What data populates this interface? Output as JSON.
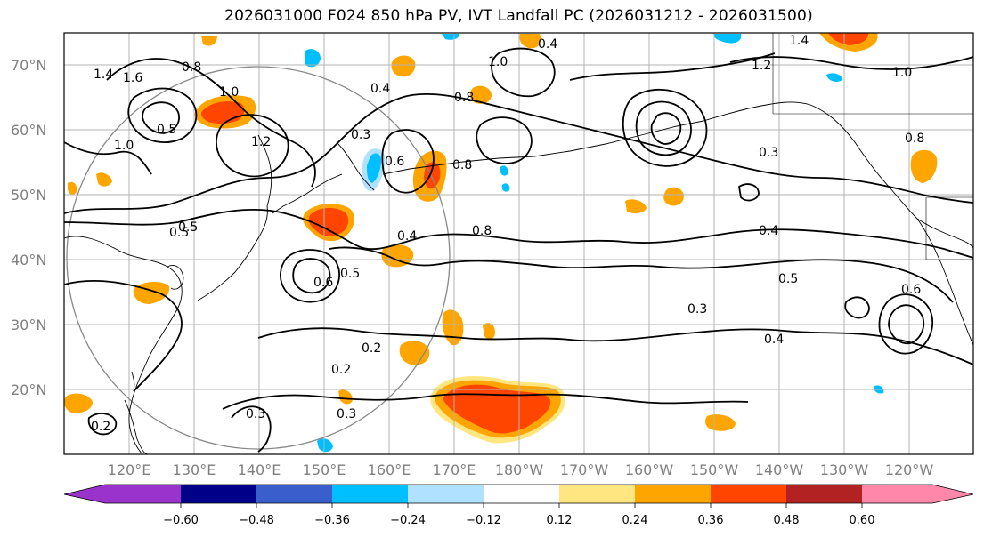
{
  "title": "2026031000 F024 850 hPa PV, IVT Landfall PC (2026031212 - 2026031500)",
  "lat_labels": [
    "70°N",
    "60°N",
    "50°N",
    "40°N",
    "30°N",
    "20°N"
  ],
  "lon_labels": [
    "120°E",
    "130°E",
    "140°E",
    "150°E",
    "160°E",
    "170°E",
    "180°W",
    "170°W",
    "160°W",
    "150°W",
    "140°W",
    "130°W",
    "120°W"
  ],
  "contour_labels": [
    "1.4",
    "1.6",
    "0.8",
    "1.0",
    "0.5",
    "1.0",
    "1.2",
    "0.4",
    "1.0",
    "0.8",
    "0.3",
    "0.8",
    "0.4",
    "0.6",
    "0.4",
    "0.5",
    "0.4",
    "0.3",
    "0.3",
    "0.4",
    "0.2",
    "0.2",
    "0.3",
    "0.2",
    "0.5",
    "0.8",
    "0.5",
    "0.6",
    "0.6",
    "1.2",
    "1.0",
    "1.4",
    "0.8",
    "0.5",
    "0.3"
  ],
  "colorbar": {
    "ticks": [
      "−0.60",
      "−0.48",
      "−0.36",
      "−0.24",
      "−0.12",
      "0.12",
      "0.24",
      "0.36",
      "0.48",
      "0.60"
    ],
    "colors": [
      "#9933cc",
      "#000088",
      "#3a5fcd",
      "#00bfff",
      "#b0e2ff",
      "#ffffff",
      "#ffe680",
      "#ffa500",
      "#ff4500",
      "#b22222",
      "#ff88aa",
      "#ff88aa"
    ]
  },
  "fill_colors": {
    "yellow": "#ffe680",
    "orange": "#ffa500",
    "red": "#ff4500",
    "cyan": "#00bfff",
    "lightblue": "#b0e2ff"
  }
}
